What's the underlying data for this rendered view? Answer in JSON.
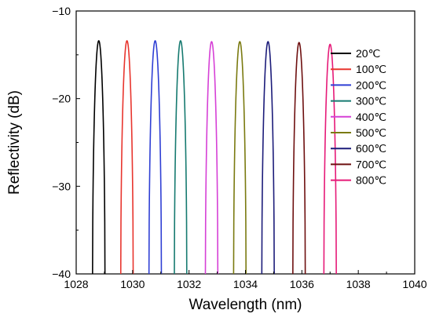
{
  "chart_data": {
    "type": "line",
    "title": "",
    "xlabel": "Wavelength (nm)",
    "ylabel": "Reflectivity (dB)",
    "xlim": [
      1028,
      1040
    ],
    "ylim": [
      -40,
      -10
    ],
    "xticks": [
      1028,
      1030,
      1032,
      1034,
      1036,
      1038,
      1040
    ],
    "xtick_labels": [
      "1028",
      "1030",
      "1032",
      "1034",
      "1036",
      "1038",
      "1040"
    ],
    "yticks": [
      -40,
      -30,
      -20,
      -10
    ],
    "ytick_labels": [
      "−40",
      "−30",
      "−20",
      "−10"
    ],
    "grid": false,
    "legend_position": "top-right",
    "peak_half_width_nm": 0.22,
    "series": [
      {
        "name": "20℃",
        "color": "#000000",
        "peak_wavelength": 1028.8,
        "peak_reflectivity": -13.4
      },
      {
        "name": "100℃",
        "color": "#e8352e",
        "peak_wavelength": 1029.8,
        "peak_reflectivity": -13.4
      },
      {
        "name": "200℃",
        "color": "#2f3fd4",
        "peak_wavelength": 1030.8,
        "peak_reflectivity": -13.4
      },
      {
        "name": "300℃",
        "color": "#167a70",
        "peak_wavelength": 1031.7,
        "peak_reflectivity": -13.4
      },
      {
        "name": "400℃",
        "color": "#d640d6",
        "peak_wavelength": 1032.8,
        "peak_reflectivity": -13.5
      },
      {
        "name": "500℃",
        "color": "#7a7a10",
        "peak_wavelength": 1033.8,
        "peak_reflectivity": -13.5
      },
      {
        "name": "600℃",
        "color": "#1c1c7a",
        "peak_wavelength": 1034.8,
        "peak_reflectivity": -13.5
      },
      {
        "name": "700℃",
        "color": "#6e1010",
        "peak_wavelength": 1035.9,
        "peak_reflectivity": -13.6
      },
      {
        "name": "800℃",
        "color": "#e61a78",
        "peak_wavelength": 1037.0,
        "peak_reflectivity": -13.8
      }
    ]
  }
}
